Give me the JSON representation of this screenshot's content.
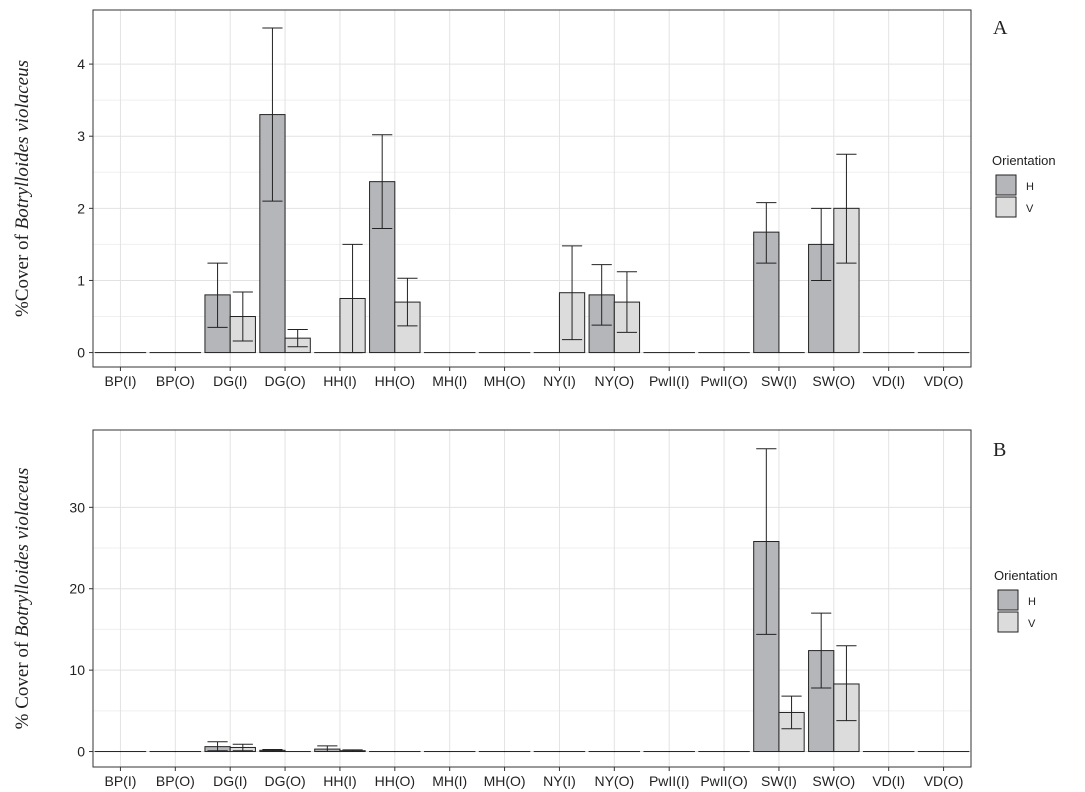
{
  "chart_data": [
    {
      "type": "bar",
      "panel": "A",
      "ylabel_prefix": "%Cover of ",
      "ylabel_species": "Botrylloides violaceus",
      "categories": [
        "BP(I)",
        "BP(O)",
        "DG(I)",
        "DG(O)",
        "HH(I)",
        "HH(O)",
        "MH(I)",
        "MH(O)",
        "NY(I)",
        "NY(O)",
        "PwII(I)",
        "PwII(O)",
        "SW(I)",
        "SW(O)",
        "VD(I)",
        "VD(O)"
      ],
      "yticks": [
        0,
        1,
        2,
        3,
        4
      ],
      "ylim": [
        -0.2,
        4.75
      ],
      "legend_title": "Orientation",
      "legend_position": "right",
      "grid": true,
      "series": [
        {
          "name": "H",
          "color": "#b5b6ba",
          "values": [
            0,
            0,
            0.8,
            3.3,
            0,
            2.37,
            0,
            0,
            0,
            0.8,
            0,
            0,
            1.67,
            1.5,
            0,
            0
          ],
          "err_low": [
            0,
            0,
            0.35,
            2.1,
            0,
            1.72,
            0,
            0,
            0,
            0.38,
            0,
            0,
            1.24,
            1.0,
            0,
            0
          ],
          "err_high": [
            0,
            0,
            1.24,
            4.5,
            0,
            3.02,
            0,
            0,
            0,
            1.22,
            0,
            0,
            2.08,
            2.0,
            0,
            0
          ]
        },
        {
          "name": "V",
          "color": "#dcdcdc",
          "values": [
            0,
            0,
            0.5,
            0.2,
            0.75,
            0.7,
            0,
            0,
            0.83,
            0.7,
            0,
            0,
            0,
            2.0,
            0,
            0
          ],
          "err_low": [
            0,
            0,
            0.16,
            0.08,
            0.0,
            0.37,
            0,
            0,
            0.18,
            0.28,
            0,
            0,
            0,
            1.24,
            0,
            0
          ],
          "err_high": [
            0,
            0,
            0.84,
            0.32,
            1.5,
            1.03,
            0,
            0,
            1.48,
            1.12,
            0,
            0,
            0,
            2.75,
            0,
            0
          ]
        }
      ]
    },
    {
      "type": "bar",
      "panel": "B",
      "ylabel_prefix": "% Cover of ",
      "ylabel_species": "Botrylloides violaceus",
      "categories": [
        "BP(I)",
        "BP(O)",
        "DG(I)",
        "DG(O)",
        "HH(I)",
        "HH(O)",
        "MH(I)",
        "MH(O)",
        "NY(I)",
        "NY(O)",
        "PwII(I)",
        "PwII(O)",
        "SW(I)",
        "SW(O)",
        "VD(I)",
        "VD(O)"
      ],
      "yticks": [
        0,
        10,
        20,
        30
      ],
      "ylim": [
        -1.9,
        39.5
      ],
      "legend_title": "Orientation",
      "legend_position": "right",
      "grid": true,
      "series": [
        {
          "name": "H",
          "color": "#b5b6ba",
          "values": [
            0,
            0,
            0.6,
            0.15,
            0.3,
            0,
            0,
            0,
            0,
            0,
            0,
            0,
            25.8,
            12.4,
            0,
            0
          ],
          "err_low": [
            0,
            0,
            0.1,
            0.05,
            0.0,
            0,
            0,
            0,
            0,
            0,
            0,
            0,
            14.4,
            7.8,
            0,
            0
          ],
          "err_high": [
            0,
            0,
            1.2,
            0.25,
            0.7,
            0,
            0,
            0,
            0,
            0,
            0,
            0,
            37.2,
            17.0,
            0,
            0
          ]
        },
        {
          "name": "V",
          "color": "#dcdcdc",
          "values": [
            0,
            0,
            0.5,
            0,
            0.1,
            0,
            0,
            0,
            0,
            0,
            0,
            0,
            4.8,
            8.3,
            0,
            0
          ],
          "err_low": [
            0,
            0,
            0.1,
            0,
            0.0,
            0,
            0,
            0,
            0,
            0,
            0,
            0,
            2.8,
            3.8,
            0,
            0
          ],
          "err_high": [
            0,
            0,
            0.9,
            0,
            0.2,
            0,
            0,
            0,
            0,
            0,
            0,
            0,
            6.8,
            13.0,
            0,
            0
          ]
        }
      ]
    }
  ]
}
